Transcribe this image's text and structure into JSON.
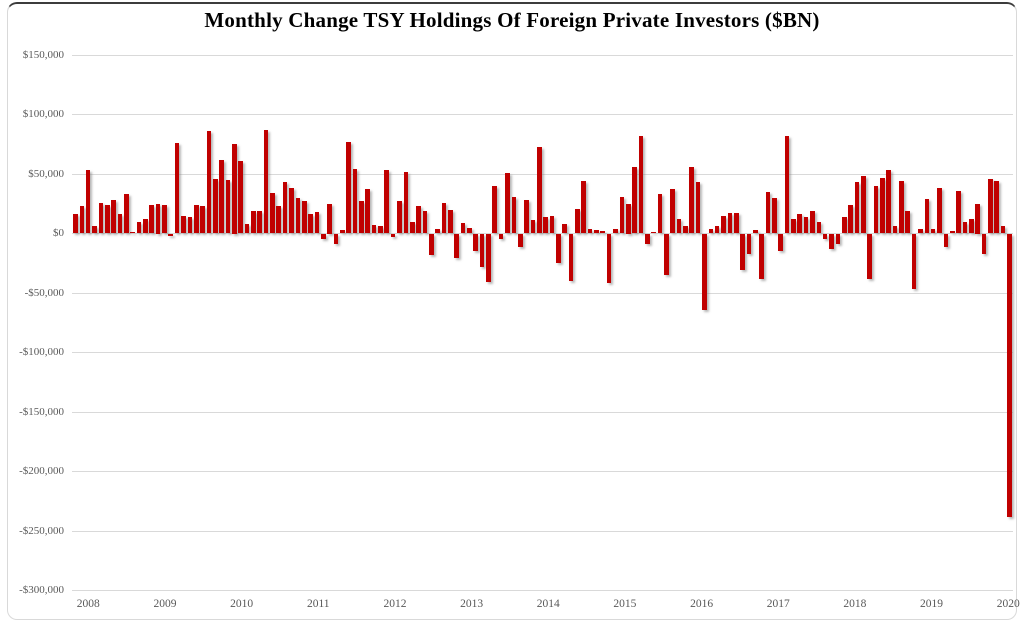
{
  "title": "Monthly Change TSY Holdings Of Foreign Private Investors ($BN)",
  "chart_data": {
    "type": "bar",
    "title": "Monthly Change TSY Holdings Of Foreign Private Investors ($BN)",
    "frequency": "monthly",
    "x_start": "2008-01",
    "x_end": "2020-04",
    "xlabel": "",
    "ylabel": "",
    "ylim": [
      -300000,
      150000
    ],
    "grid": "horizontal",
    "legend_position": "none",
    "bar_color": "#C00000",
    "gridline_color": "#D9D9D9",
    "axis_label_color": "#595959",
    "y_ticks": [
      {
        "label": "$150,000",
        "value": 150000
      },
      {
        "label": "$100,000",
        "value": 100000
      },
      {
        "label": "$50,000",
        "value": 50000
      },
      {
        "label": "$0",
        "value": 0
      },
      {
        "label": "-$50,000",
        "value": -50000
      },
      {
        "label": "-$100,000",
        "value": -100000
      },
      {
        "label": "-$150,000",
        "value": -150000
      },
      {
        "label": "-$200,000",
        "value": -200000
      },
      {
        "label": "-$250,000",
        "value": -250000
      },
      {
        "label": "-$300,000",
        "value": -300000
      }
    ],
    "x_tick_labels": [
      "2008",
      "2009",
      "2010",
      "2011",
      "2012",
      "2013",
      "2014",
      "2015",
      "2016",
      "2017",
      "2018",
      "2019",
      "2020"
    ],
    "series": [
      {
        "name": "Monthly Change TSY Holdings Of Foreign Private Investors",
        "values": [
          16000,
          23000,
          53000,
          6000,
          26000,
          24000,
          28000,
          16000,
          33000,
          1000,
          10000,
          12000,
          24000,
          25000,
          24000,
          -2000,
          76000,
          15000,
          14000,
          24000,
          23000,
          86000,
          46000,
          62000,
          45000,
          75000,
          61000,
          8000,
          19000,
          19000,
          87000,
          34000,
          23000,
          43000,
          38000,
          30000,
          27000,
          16000,
          18000,
          -5000,
          25000,
          -9000,
          3000,
          77000,
          54000,
          27000,
          37000,
          7000,
          6000,
          53000,
          -3000,
          27000,
          52000,
          10000,
          23000,
          19000,
          -18000,
          4000,
          26000,
          20000,
          -21000,
          9000,
          5000,
          -15000,
          -28000,
          -41000,
          40000,
          -5000,
          51000,
          31000,
          -11000,
          28000,
          11000,
          73000,
          14000,
          15000,
          -25000,
          8000,
          -40000,
          21000,
          44000,
          4000,
          3000,
          2000,
          -42000,
          4000,
          31000,
          25000,
          56000,
          82000,
          -9000,
          1000,
          33000,
          -35000,
          37000,
          12000,
          6000,
          56000,
          43000,
          -64000,
          4000,
          6000,
          15000,
          17000,
          17000,
          -31000,
          -17000,
          3000,
          -38000,
          35000,
          30000,
          -15000,
          82000,
          12000,
          16000,
          14000,
          19000,
          10000,
          -5000,
          -13000,
          -9000,
          14000,
          24000,
          43000,
          48000,
          -38000,
          40000,
          47000,
          53000,
          6000,
          44000,
          19000,
          -47000,
          4000,
          29000,
          4000,
          38000,
          -11000,
          2000,
          36000,
          10000,
          12000,
          25000,
          -17000,
          46000,
          44000,
          6000,
          -238000
        ]
      }
    ]
  }
}
